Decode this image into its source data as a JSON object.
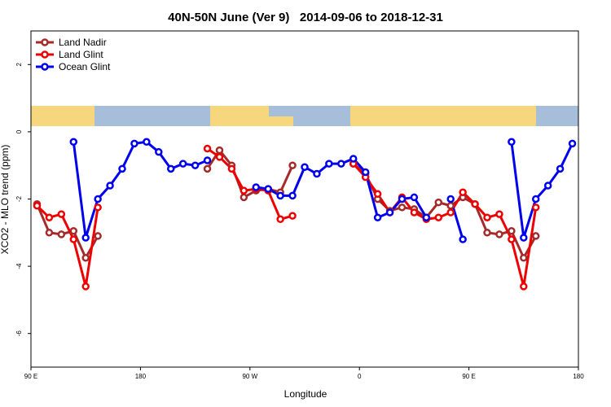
{
  "chart_data": {
    "type": "line",
    "title": "40N-50N June (Ver 9)   2014-09-06 to 2018-12-31",
    "x_label": "Longitude",
    "y_label": "XCO2 - MLO trend (ppm)",
    "x": [
      95,
      105,
      115,
      125,
      135,
      145,
      155,
      165,
      175,
      185,
      195,
      205,
      215,
      225,
      235,
      245,
      255,
      265,
      275,
      285,
      295,
      305,
      315,
      325,
      335,
      345,
      355,
      365,
      375,
      385,
      395,
      405,
      415,
      425,
      435,
      445,
      455,
      465,
      475,
      485,
      495,
      505,
      515,
      525,
      535
    ],
    "series": [
      {
        "name": "Land Nadir",
        "color": "#a52a2a",
        "values": [
          -2.15,
          -3.0,
          -3.05,
          -2.95,
          -3.75,
          -3.1,
          null,
          null,
          null,
          null,
          null,
          null,
          null,
          null,
          -1.1,
          -0.55,
          -1.0,
          -1.95,
          -1.75,
          -1.7,
          -1.8,
          -1.0,
          null,
          null,
          null,
          null,
          -0.95,
          -1.25,
          -2.0,
          -2.35,
          -2.25,
          -2.3,
          -2.55,
          -2.1,
          -2.2,
          -1.95,
          -2.15,
          -3.0,
          -3.05,
          -2.95,
          -3.75,
          -3.1,
          null,
          null,
          null
        ]
      },
      {
        "name": "Land Glint",
        "color": "#ee0000",
        "values": [
          -2.2,
          -2.55,
          -2.45,
          -3.2,
          -4.6,
          -2.25,
          null,
          null,
          null,
          null,
          null,
          null,
          null,
          null,
          -0.5,
          -0.75,
          -1.1,
          -1.75,
          -1.7,
          -1.75,
          -2.6,
          -2.5,
          null,
          null,
          null,
          null,
          -0.95,
          -1.35,
          -1.85,
          -2.4,
          -1.95,
          -2.4,
          -2.6,
          -2.55,
          -2.4,
          -1.8,
          -2.15,
          -2.55,
          -2.45,
          -3.2,
          -4.6,
          -2.25,
          null,
          null,
          null
        ]
      },
      {
        "name": "Ocean Glint",
        "color": "#0000ee",
        "values": [
          null,
          null,
          null,
          -0.3,
          -3.15,
          -2.0,
          -1.6,
          -1.1,
          -0.35,
          -0.3,
          -0.6,
          -1.1,
          -0.95,
          -1.0,
          -0.85,
          null,
          null,
          null,
          -1.65,
          -1.7,
          -1.9,
          -1.9,
          -1.05,
          -1.25,
          -0.95,
          -0.95,
          -0.8,
          -1.2,
          -2.55,
          -2.4,
          -2.0,
          -1.95,
          -2.55,
          null,
          -2.0,
          -3.2,
          null,
          null,
          null,
          -0.3,
          -3.15,
          -2.0,
          -1.6,
          -1.1,
          -0.35
        ]
      }
    ],
    "xlim": [
      90,
      540
    ],
    "xticks": [
      {
        "value": 90,
        "label": "90 E"
      },
      180,
      {
        "value": 270,
        "label": "90 W"
      },
      {
        "value": 360,
        "label": "0"
      },
      {
        "value": 450,
        "label": "90 E"
      },
      {
        "value": 540,
        "label": "180"
      }
    ],
    "ylim": [
      -7,
      3
    ],
    "yticks": [
      2,
      0,
      -2,
      -4,
      -6
    ],
    "legend": "top-left"
  }
}
